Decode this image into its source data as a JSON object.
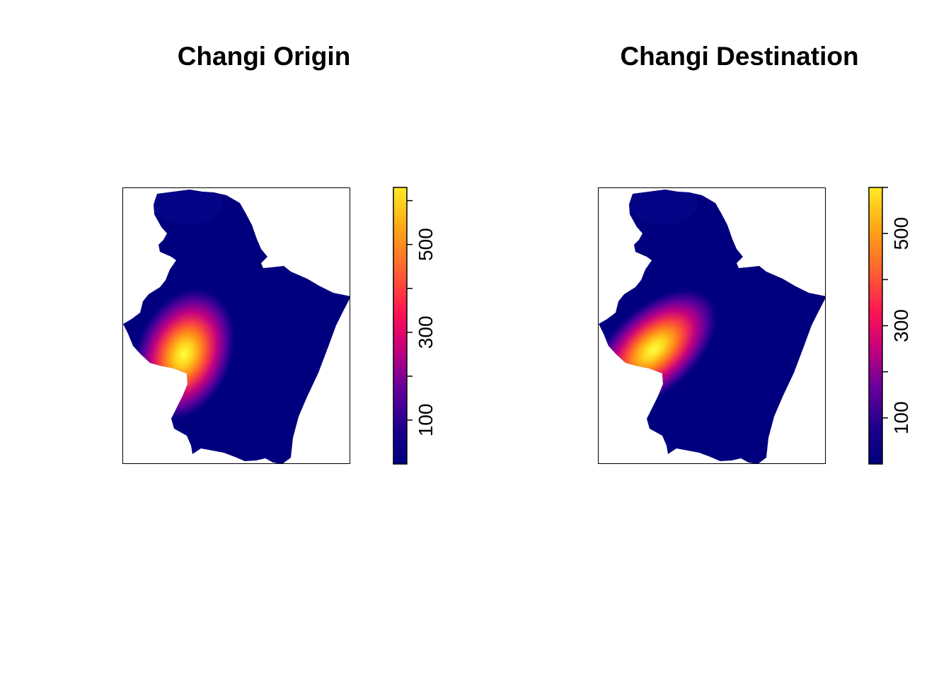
{
  "chart_data": [
    {
      "type": "heatmap",
      "title": "Changi Origin",
      "colorbar": {
        "min": 0,
        "max": 630,
        "ticks": [
          100,
          200,
          300,
          400,
          500,
          600
        ],
        "tick_labels": [
          "100",
          "300",
          "500"
        ],
        "palette": [
          "#00007F",
          "#3B0090",
          "#9A00A4",
          "#E8005F",
          "#FF4A2C",
          "#FF9A14",
          "#FFDD1D",
          "#FFFF44"
        ]
      },
      "hotspot": {
        "peak_value": 630,
        "location": "south-west"
      }
    },
    {
      "type": "heatmap",
      "title": "Changi Destination",
      "colorbar": {
        "min": 0,
        "max": 600,
        "ticks": [
          100,
          200,
          300,
          400,
          500,
          600
        ],
        "tick_labels": [
          "100",
          "300",
          "500"
        ],
        "palette": [
          "#00007F",
          "#3B0090",
          "#9A00A4",
          "#E8005F",
          "#FF4A2C",
          "#FF9A14",
          "#FFDD1D",
          "#FFFF44"
        ]
      },
      "hotspot": {
        "peak_value": 600,
        "location": "south-west"
      }
    }
  ]
}
